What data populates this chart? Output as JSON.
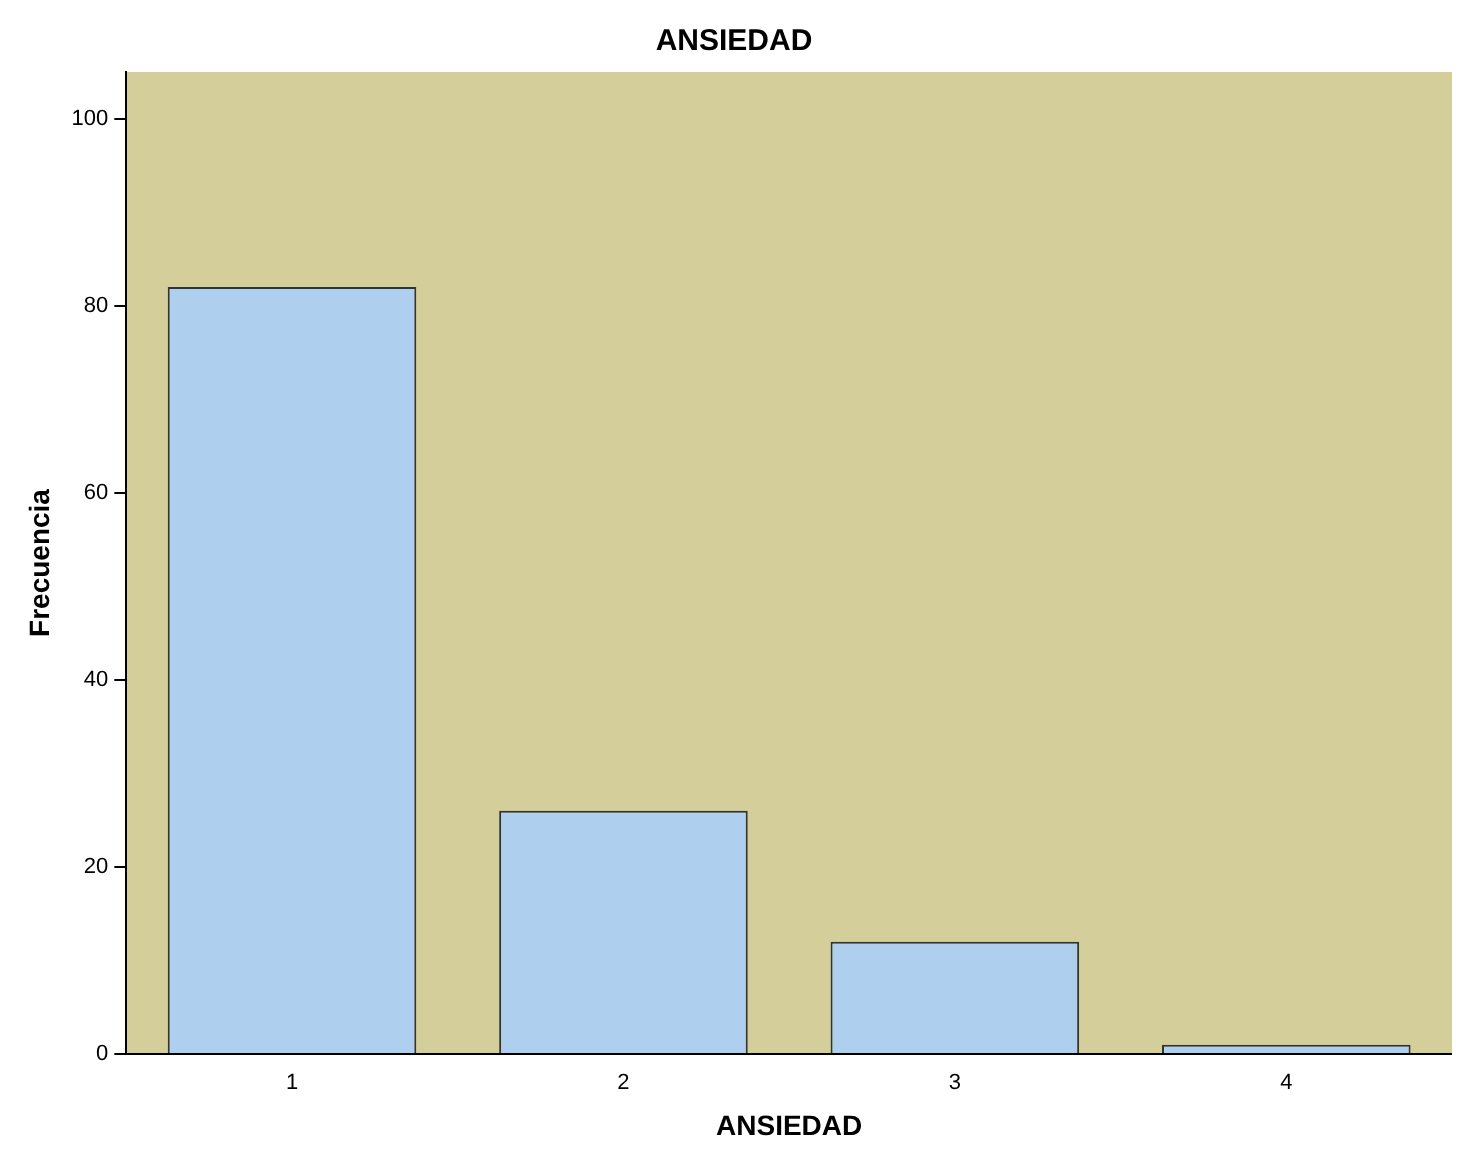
{
  "chart_data": {
    "type": "bar",
    "title": "ANSIEDAD",
    "xlabel": "ANSIEDAD",
    "ylabel": "Frecuencia",
    "categories": [
      "1",
      "2",
      "3",
      "4"
    ],
    "series": [
      {
        "color": "#aed0ee",
        "values": [
          82,
          26,
          12,
          1
        ]
      }
    ],
    "ylim": [
      0,
      105
    ],
    "yticks": [
      0,
      20,
      40,
      60,
      80,
      100
    ],
    "grid": false,
    "legend": false
  }
}
